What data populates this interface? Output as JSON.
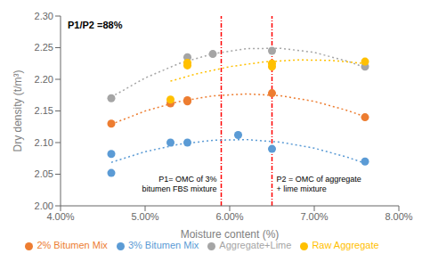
{
  "chart_data": {
    "type": "scatter",
    "title": "P1/P2 =88%",
    "x_label": "Moisture content (%)",
    "y_label": "Dry density (t/m³)",
    "xlim": [
      0.04,
      0.08
    ],
    "ylim": [
      2.0,
      2.3
    ],
    "xticks": [
      {
        "value": 0.04,
        "label": "4.00%"
      },
      {
        "value": 0.05,
        "label": "5.00%"
      },
      {
        "value": 0.06,
        "label": "6.00%"
      },
      {
        "value": 0.07,
        "label": "7.00%"
      },
      {
        "value": 0.08,
        "label": "8.00%"
      }
    ],
    "yticks": [
      {
        "value": 2.0,
        "label": "2.00"
      },
      2.05,
      {
        "value": 2.1,
        "label": "2.10"
      },
      2.15,
      {
        "value": 2.2,
        "label": "2.20"
      },
      2.25,
      {
        "value": 2.3,
        "label": "2.30"
      }
    ],
    "grid": false,
    "legend": "bottom",
    "series": [
      {
        "type": "line",
        "line_style": "dotted",
        "color": "#5b9bd5",
        "x": [
          0.046,
          0.05,
          0.054,
          0.058,
          0.062,
          0.066,
          0.07,
          0.074,
          0.076
        ],
        "values": [
          2.06874,
          2.08563,
          2.09726,
          2.10364,
          2.10475,
          2.1006,
          2.0912,
          2.07654,
          2.06723
        ]
      },
      {
        "type": "line",
        "line_style": "dotted",
        "color": "#ed7d31",
        "x": [
          0.046,
          0.05,
          0.054,
          0.058,
          0.062,
          0.066,
          0.07,
          0.074,
          0.076
        ],
        "values": [
          2.12896,
          2.14987,
          2.16483,
          2.17384,
          2.17691,
          2.17403,
          2.1652,
          2.15042,
          2.1408
        ]
      },
      {
        "type": "line",
        "line_style": "dotted",
        "color": "#a5a5a5",
        "x": [
          0.046,
          0.05,
          0.054,
          0.058,
          0.062,
          0.066,
          0.07,
          0.074,
          0.076
        ],
        "values": [
          2.17196,
          2.20213,
          2.22493,
          2.24036,
          2.24842,
          2.24911,
          2.24243,
          2.22837,
          2.21858
        ]
      },
      {
        "type": "line",
        "line_style": "dotted",
        "color": "#ffc000",
        "x": [
          0.053,
          0.056,
          0.06,
          0.064,
          0.068,
          0.072,
          0.076
        ],
        "values": [
          2.19708,
          2.20842,
          2.21995,
          2.22737,
          2.23068,
          2.22988,
          2.22498
        ]
      },
      {
        "name": "3% Bitumen Mix",
        "type": "scatter",
        "marker": "circle",
        "color": "#5b9bd5",
        "x": [
          0.046,
          0.046,
          0.053,
          0.055,
          0.061,
          0.065,
          0.076
        ],
        "values": [
          2.082,
          2.052,
          2.1,
          2.1,
          2.112,
          2.09,
          2.07
        ]
      },
      {
        "name": "2% Bitumen Mix",
        "type": "scatter",
        "marker": "circle",
        "color": "#ed7d31",
        "x": [
          0.046,
          0.053,
          0.055,
          0.055,
          0.065,
          0.076
        ],
        "values": [
          2.13,
          2.162,
          2.165,
          2.167,
          2.178,
          2.14
        ]
      },
      {
        "name": "Aggregate+Lime",
        "type": "scatter",
        "marker": "circle",
        "color": "#a5a5a5",
        "x": [
          0.046,
          0.055,
          0.058,
          0.065,
          0.076
        ],
        "values": [
          2.17,
          2.235,
          2.24,
          2.245,
          2.22
        ]
      },
      {
        "name": "Raw Aggregate",
        "type": "scatter",
        "marker": "circle",
        "color": "#ffc000",
        "x": [
          0.053,
          0.055,
          0.055,
          0.065,
          0.065,
          0.076
        ],
        "values": [
          2.168,
          2.222,
          2.226,
          2.22,
          2.225,
          2.228
        ]
      }
    ],
    "annotations": [
      {
        "text": "P1= OMC of 3%\nbitumen FBS mixture",
        "x": 0.059,
        "color": "red"
      },
      {
        "text": "P2 = OMC of aggregate\n+ lime mixture",
        "x": 0.065,
        "color": "red"
      }
    ]
  }
}
